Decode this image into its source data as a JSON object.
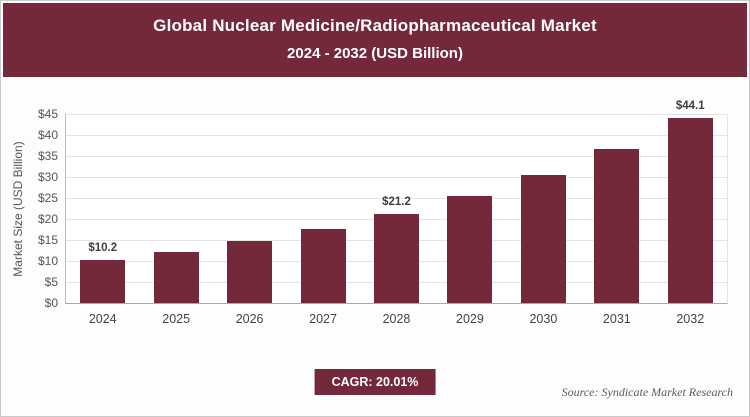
{
  "header": {
    "title_line1": "Global Nuclear Medicine/Radiopharmaceutical Market",
    "title_line2": "2024 - 2032 (USD Billion)"
  },
  "chart_data": {
    "type": "bar",
    "title": "Global Nuclear Medicine/Radiopharmaceutical Market 2024 - 2032 (USD Billion)",
    "categories": [
      "2024",
      "2025",
      "2026",
      "2027",
      "2028",
      "2029",
      "2030",
      "2031",
      "2032"
    ],
    "values": [
      10.2,
      12.2,
      14.7,
      17.6,
      21.2,
      25.4,
      30.5,
      36.6,
      44.1
    ],
    "bar_labels": [
      "$10.2",
      "",
      "",
      "",
      "$21.2",
      "",
      "",
      "",
      "$44.1"
    ],
    "xlabel": "",
    "ylabel": "Market Size (USD Billion)",
    "ylim": [
      0,
      45
    ],
    "ytick_step": 5,
    "ytick_prefix": "$",
    "grid": "horizontal",
    "legend": "none",
    "bar_color": "#74293B"
  },
  "footer": {
    "cagr_label": "CAGR: 20.01%",
    "source": "Source: Syndicate Market Research"
  },
  "colors": {
    "accent": "#74293B",
    "grid": "#e4e4e4",
    "axis": "#a8a8a8",
    "text": "#444444"
  }
}
